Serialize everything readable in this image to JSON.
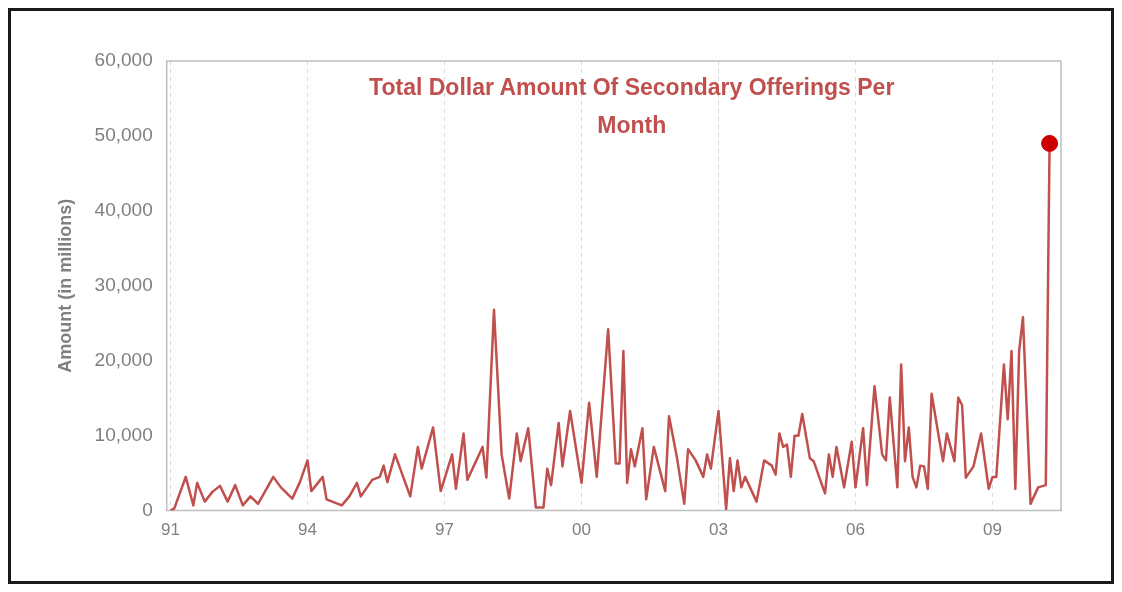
{
  "chart_data": {
    "type": "line",
    "title": "Total Dollar Amount Of Secondary Offerings Per Month",
    "ylabel": "Amount (in millions)",
    "xlim": [
      "1990-12",
      "2010-07"
    ],
    "xticks": [
      {
        "value": "1991",
        "label": "91"
      },
      {
        "value": "1994",
        "label": "94"
      },
      {
        "value": "1997",
        "label": "97"
      },
      {
        "value": "2000",
        "label": "00"
      },
      {
        "value": "2003",
        "label": "03"
      },
      {
        "value": "2006",
        "label": "06"
      },
      {
        "value": "2009",
        "label": "09"
      }
    ],
    "ylim": [
      0,
      60000
    ],
    "yticks": [
      {
        "value": 0,
        "label": "0"
      },
      {
        "value": 10000,
        "label": "10,000"
      },
      {
        "value": 20000,
        "label": "20,000"
      },
      {
        "value": 30000,
        "label": "30,000"
      },
      {
        "value": 40000,
        "label": "40,000"
      },
      {
        "value": 50000,
        "label": "50,000"
      },
      {
        "value": 60000,
        "label": "60,000"
      }
    ],
    "grid": "x",
    "legend": false,
    "marker": "none",
    "line_style": "solid",
    "series": [
      {
        "color": "#c0504d",
        "x": [
          "1991-01",
          "1991-02",
          "1991-05",
          "1991-07",
          "1991-08",
          "1991-10",
          "1991-12",
          "1992-02",
          "1992-04",
          "1992-06",
          "1992-08",
          "1992-10",
          "1992-12",
          "1993-04",
          "1993-06",
          "1993-09",
          "1993-11",
          "1994-01",
          "1994-02",
          "1994-05",
          "1994-06",
          "1994-10",
          "1994-12",
          "1995-02",
          "1995-03",
          "1995-06",
          "1995-08",
          "1995-09",
          "1995-10",
          "1995-12",
          "1996-04",
          "1996-06",
          "1996-07",
          "1996-10",
          "1996-12",
          "1997-03",
          "1997-04",
          "1997-06",
          "1997-07",
          "1997-11",
          "1997-12",
          "1998-02",
          "1998-04",
          "1998-06",
          "1998-08",
          "1998-09",
          "1998-11",
          "1999-01",
          "1999-03",
          "1999-04",
          "1999-05",
          "1999-07",
          "1999-08",
          "1999-10",
          "2000-01",
          "2000-03",
          "2000-05",
          "2000-08",
          "2000-10",
          "2000-11",
          "2000-12",
          "2001-01",
          "2001-02",
          "2001-03",
          "2001-05",
          "2001-06",
          "2001-08",
          "2001-11",
          "2001-12",
          "2002-02",
          "2002-04",
          "2002-05",
          "2002-07",
          "2002-09",
          "2002-10",
          "2002-11",
          "2003-01",
          "2003-03",
          "2003-04",
          "2003-05",
          "2003-06",
          "2003-07",
          "2003-08",
          "2003-11",
          "2004-01",
          "2004-03",
          "2004-04",
          "2004-05",
          "2004-06",
          "2004-07",
          "2004-08",
          "2004-09",
          "2004-10",
          "2004-11",
          "2005-01",
          "2005-02",
          "2005-04",
          "2005-05",
          "2005-06",
          "2005-07",
          "2005-08",
          "2005-10",
          "2005-12",
          "2006-01",
          "2006-03",
          "2006-04",
          "2006-06",
          "2006-08",
          "2006-09",
          "2006-10",
          "2006-12",
          "2007-01",
          "2007-02",
          "2007-03",
          "2007-04",
          "2007-05",
          "2007-06",
          "2007-07",
          "2007-08",
          "2007-09",
          "2007-11",
          "2007-12",
          "2008-01",
          "2008-03",
          "2008-04",
          "2008-05",
          "2008-06",
          "2008-08",
          "2008-10",
          "2008-12",
          "2009-01",
          "2009-02",
          "2009-04",
          "2009-05",
          "2009-06",
          "2009-07",
          "2009-08",
          "2009-09",
          "2009-11",
          "2010-01",
          "2010-03",
          "2010-04"
        ],
        "values": [
          0,
          300,
          4500,
          700,
          3700,
          1200,
          2500,
          3300,
          1200,
          3400,
          700,
          1900,
          900,
          4500,
          3100,
          1600,
          3800,
          6700,
          2600,
          4500,
          1500,
          700,
          1900,
          3700,
          1900,
          4100,
          4500,
          6000,
          3800,
          7500,
          1900,
          8500,
          5600,
          11100,
          2600,
          7500,
          2900,
          10300,
          4100,
          8500,
          4400,
          26800,
          7500,
          1600,
          10300,
          6600,
          11000,
          400,
          400,
          5600,
          3400,
          11700,
          5900,
          13300,
          3700,
          14400,
          4500,
          24200,
          6300,
          6300,
          21300,
          3700,
          8200,
          5900,
          11000,
          1500,
          8500,
          2600,
          12600,
          7300,
          900,
          8200,
          6700,
          4500,
          7500,
          5600,
          13300,
          200,
          7000,
          2600,
          6700,
          3100,
          4500,
          1200,
          6700,
          6000,
          4800,
          10300,
          8500,
          8800,
          4500,
          10000,
          10000,
          12900,
          7000,
          6600,
          3700,
          2300,
          7500,
          4500,
          8500,
          3100,
          9200,
          3100,
          11000,
          3400,
          16600,
          7500,
          6700,
          15100,
          3100,
          19500,
          6600,
          11100,
          4500,
          3100,
          6000,
          5900,
          2900,
          15600,
          9500,
          6600,
          10300,
          6600,
          15100,
          14100,
          4400,
          5900,
          10300,
          2900,
          4500,
          4500,
          19500,
          12200,
          21300,
          2900,
          21300,
          25800,
          900,
          3100,
          3400,
          49000
        ]
      },
      {
        "type": "scatter",
        "color": "#cc0000",
        "marker": "circle",
        "x": [
          "2010-04"
        ],
        "values": [
          49000
        ]
      }
    ]
  }
}
